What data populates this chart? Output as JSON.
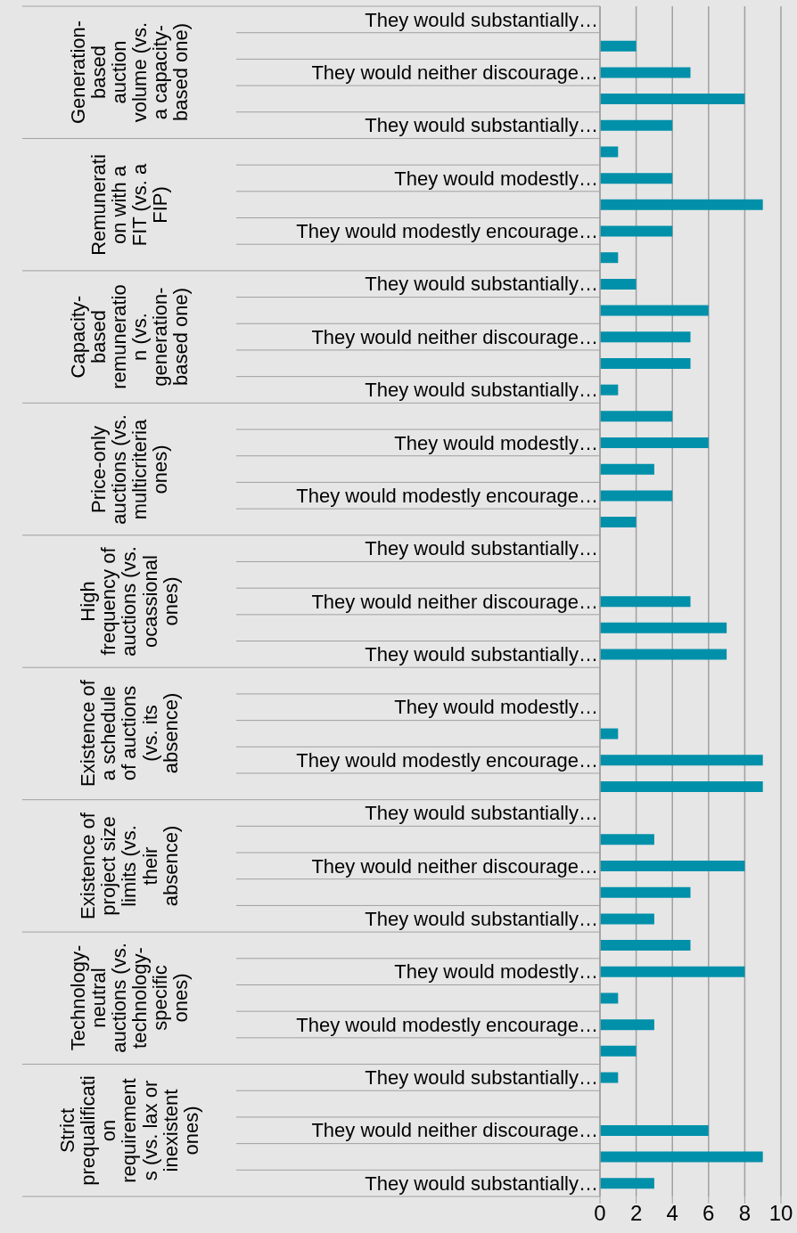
{
  "chart_data": {
    "type": "bar",
    "orientation": "horizontal",
    "categories": [
      "They would substantially…",
      null,
      "They would neither discourage…",
      null,
      "They would substantially…",
      null,
      "They would modestly…",
      null,
      "They would modestly encourage…",
      null,
      "They would substantially…",
      null,
      "They would neither discourage…",
      null,
      "They would substantially…",
      null,
      "They would modestly…",
      null,
      "They would modestly encourage…",
      null,
      "They would substantially…",
      null,
      "They would neither discourage…",
      null,
      "They would substantially…",
      null,
      "They would modestly…",
      null,
      "They would modestly encourage…",
      null,
      "They would substantially…",
      null,
      "They would neither discourage…",
      null,
      "They would substantially…",
      null,
      "They would modestly…",
      null,
      "They would modestly encourage…",
      null,
      "They would substantially…",
      null,
      "They would neither discourage…",
      null,
      "They would substantially…"
    ],
    "values": [
      0,
      2,
      5,
      8,
      4,
      1,
      4,
      9,
      4,
      1,
      2,
      6,
      5,
      5,
      1,
      4,
      6,
      3,
      4,
      2,
      0,
      0,
      5,
      7,
      7,
      0,
      0,
      1,
      9,
      9,
      0,
      3,
      8,
      5,
      3,
      5,
      8,
      1,
      3,
      2,
      1,
      0,
      6,
      9,
      3
    ],
    "color": "#0090aa",
    "annotations": [
      "Generation-based auction volume (vs. a capacity-based one)",
      "Remuneration with a FIT (vs. a FIP)",
      "Capacity-based remuneration (vs. generation-based one)",
      "Price-only auctions (vs. multicriteria ones)",
      "High frequency of auctions (vs. ocassional ones)",
      "Existence of a schedule of auctions (vs. its absence)",
      "Existence of project size limits (vs. their absence)",
      "Technology-neutral auctions (vs. technology-specific ones)",
      "Strict prequalification requirements (vs. lax or inexistent ones)"
    ],
    "xlim": [
      0,
      10
    ],
    "xticks": [
      0,
      2,
      4,
      6,
      8,
      10
    ],
    "grid": "x"
  }
}
